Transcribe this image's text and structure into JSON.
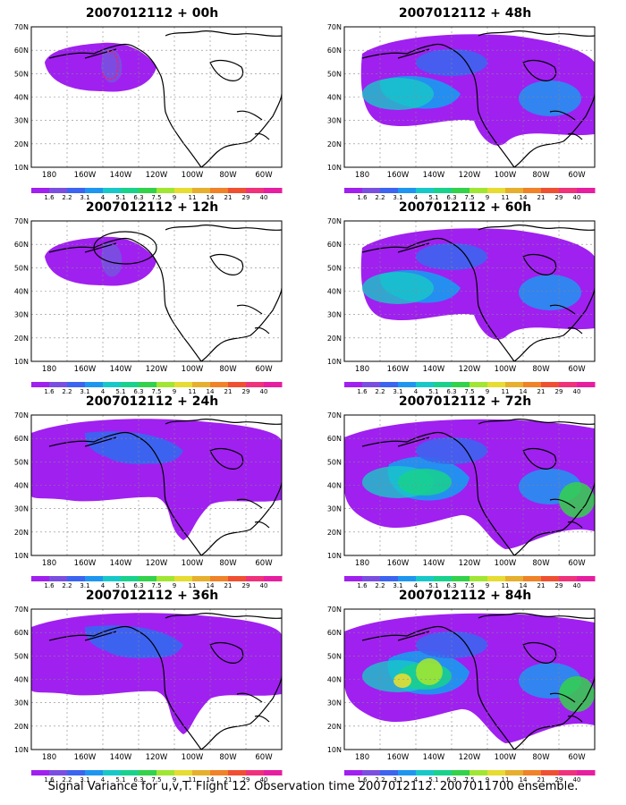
{
  "caption": "Signal Variance for u,v,T. Flight 12. Observation time 2007012112. 2007011700 ensemble.",
  "lat_labels": [
    "70N",
    "60N",
    "50N",
    "40N",
    "30N",
    "20N",
    "10N"
  ],
  "lon_labels": [
    "180",
    "160W",
    "140W",
    "120W",
    "100W",
    "80W",
    "60W"
  ],
  "colorbar": {
    "labels": [
      "1.6",
      "2.2",
      "3.1",
      "4",
      "5.1",
      "6.3",
      "7.5",
      "9",
      "11",
      "14",
      "21",
      "29",
      "40"
    ],
    "colors": [
      "#a020f0",
      "#7a4fe0",
      "#3c64f0",
      "#1e96f0",
      "#18c8c8",
      "#18d28c",
      "#32d24a",
      "#a0e632",
      "#e6dc32",
      "#e6af2d",
      "#f08228",
      "#f05032",
      "#f0327a",
      "#e61ea0"
    ]
  },
  "panels": [
    {
      "title": "2007012112 + 00h",
      "level": 0
    },
    {
      "title": "2007012112 + 48h",
      "level": 4
    },
    {
      "title": "2007012112 + 12h",
      "level": 1
    },
    {
      "title": "2007012112 + 60h",
      "level": 5
    },
    {
      "title": "2007012112 + 24h",
      "level": 2
    },
    {
      "title": "2007012112 + 72h",
      "level": 6
    },
    {
      "title": "2007012112 + 36h",
      "level": 3
    },
    {
      "title": "2007012112 + 84h",
      "level": 7
    }
  ]
}
